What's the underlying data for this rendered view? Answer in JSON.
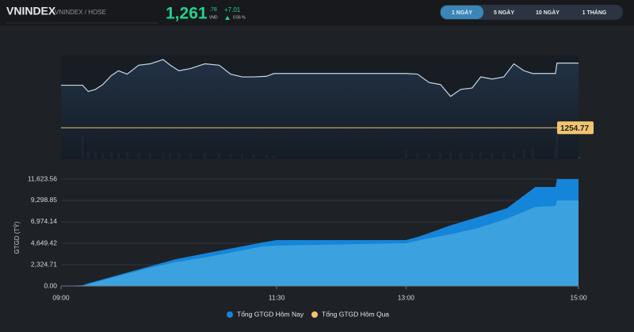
{
  "header": {
    "symbol": "VNINDEX",
    "exchange": "VNINDEX / HOSE",
    "price": "1,261",
    "price_decimals": ".78",
    "currency": "VND",
    "change": "+7.01",
    "change_pct": "0.56 %"
  },
  "tabs": [
    "1 NGÀY",
    "5 NGÀY",
    "10 NGÀY",
    "1 THÁNG"
  ],
  "chart_data": [
    {
      "type": "line",
      "color": "#c9d6e2",
      "reference": 1254.77,
      "reference_color": "#f3c46f",
      "volume_color": "#3a5068",
      "xlim": [
        "09:00",
        "15:00"
      ],
      "x": [
        "09:00",
        "09:15",
        "09:19",
        "09:24",
        "09:29",
        "09:35",
        "09:40",
        "09:46",
        "09:54",
        "10:02",
        "10:11",
        "10:16",
        "10:22",
        "10:30",
        "10:40",
        "10:50",
        "10:58",
        "11:06",
        "11:14",
        "11:23",
        "11:28",
        "11:30",
        "13:00",
        "13:08",
        "13:16",
        "13:24",
        "13:31",
        "13:38",
        "13:46",
        "13:52",
        "14:00",
        "14:08",
        "14:15",
        "14:22",
        "14:28",
        "14:44",
        "14:45",
        "15:00"
      ],
      "values": [
        1259.38,
        1259.38,
        1258.7,
        1258.93,
        1259.45,
        1260.43,
        1260.95,
        1260.58,
        1261.55,
        1261.7,
        1262.16,
        1261.55,
        1260.95,
        1261.18,
        1261.7,
        1261.55,
        1260.58,
        1260.28,
        1260.28,
        1260.35,
        1260.65,
        1260.65,
        1260.65,
        1260.58,
        1259.68,
        1259.45,
        1258.17,
        1258.93,
        1259.08,
        1260.28,
        1260.05,
        1260.28,
        1261.7,
        1260.95,
        1260.65,
        1260.65,
        1261.78,
        1261.78
      ],
      "volume": [
        0,
        30,
        10,
        9,
        8,
        9,
        8,
        9,
        8,
        8,
        9,
        8,
        8,
        7,
        8,
        7,
        6,
        6,
        6,
        5,
        4,
        0,
        12,
        8,
        7,
        8,
        9,
        8,
        8,
        9,
        8,
        9,
        10,
        12,
        14,
        16,
        45,
        2
      ]
    },
    {
      "type": "area",
      "y_label": "GTGD (TỶ)",
      "grid": true,
      "xlim": [
        "09:00",
        "15:00"
      ],
      "xticks": [
        "09:00",
        "11:30",
        "13:00",
        "15:00"
      ],
      "ylim": [
        0,
        11623.56
      ],
      "yticks": [
        {
          "value": 0,
          "label": "0.00"
        },
        {
          "value": 2324.71,
          "label": "2,324.71"
        },
        {
          "value": 4649.42,
          "label": "4,649.42"
        },
        {
          "value": 6974.14,
          "label": "6,974.14"
        },
        {
          "value": 9298.85,
          "label": "9,298.85"
        },
        {
          "value": 11623.56,
          "label": "11,623.56"
        }
      ],
      "x": [
        "09:00",
        "09:15",
        "09:20",
        "09:40",
        "10:00",
        "10:20",
        "10:40",
        "11:00",
        "11:20",
        "11:30",
        "13:00",
        "13:10",
        "13:30",
        "13:50",
        "14:10",
        "14:30",
        "14:44",
        "14:45",
        "15:00"
      ],
      "series": [
        {
          "name": "Tổng GTGD Hôm Nay",
          "color": "#1585d9",
          "fill": "#1585d9",
          "values": [
            0,
            86,
            344,
            1205,
            2066,
            2927,
            3530,
            4133,
            4736,
            4994,
            4994,
            5424,
            6544,
            7491,
            8438,
            10763,
            10763,
            11623.56,
            11623.56
          ]
        },
        {
          "name": "Tổng GTGD Hôm Qua",
          "color": "#f3c46f",
          "fill": "#3ba2df",
          "values": [
            0,
            50,
            250,
            1100,
            1900,
            2600,
            3100,
            3700,
            4300,
            4390,
            4650,
            5000,
            5600,
            6300,
            7300,
            8600,
            8700,
            9298.85,
            9298.85
          ]
        }
      ]
    }
  ]
}
